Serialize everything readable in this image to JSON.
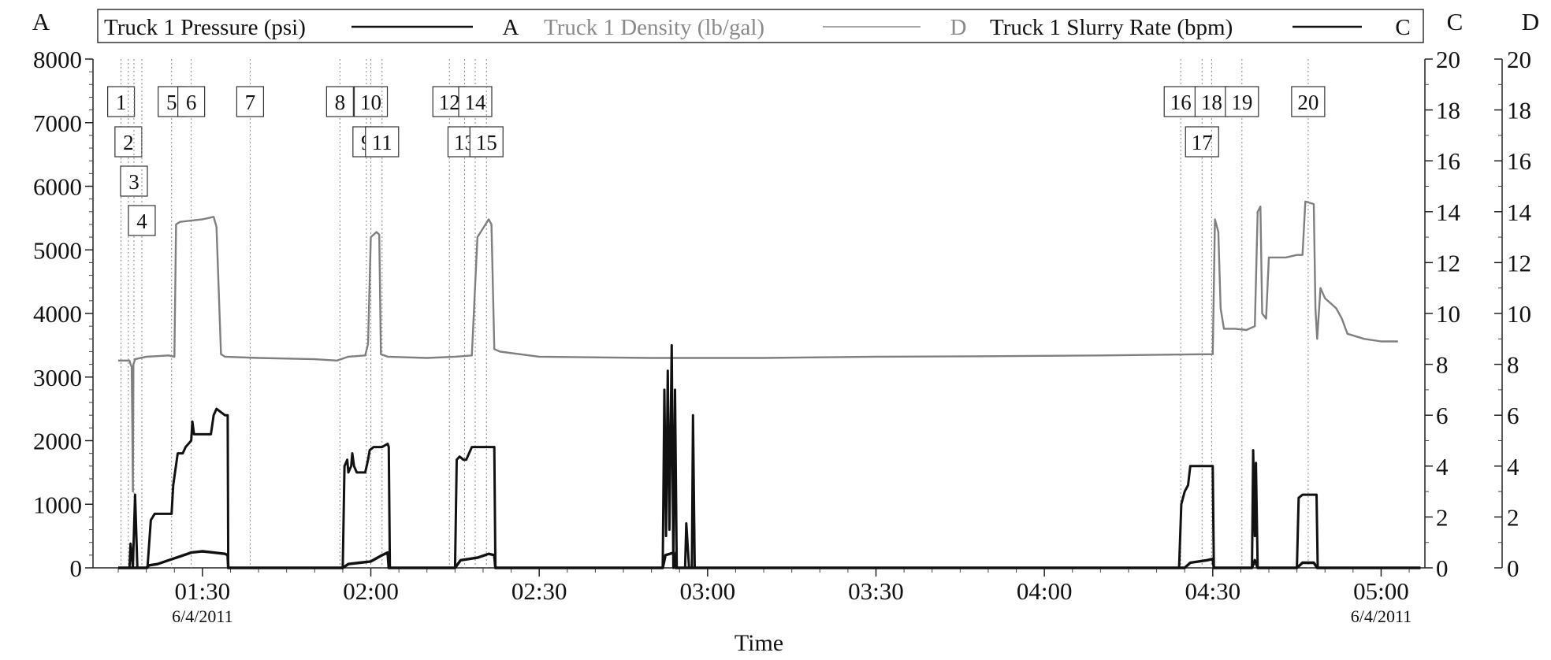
{
  "chart_data": {
    "type": "line",
    "xlabel": "Time",
    "x_ticks": [
      {
        "t": 90,
        "label": "01:30",
        "date": "6/4/2011"
      },
      {
        "t": 120,
        "label": "02:00"
      },
      {
        "t": 150,
        "label": "02:30"
      },
      {
        "t": 180,
        "label": "03:00"
      },
      {
        "t": 210,
        "label": "03:30"
      },
      {
        "t": 240,
        "label": "04:00"
      },
      {
        "t": 270,
        "label": "04:30"
      },
      {
        "t": 300,
        "label": "05:00",
        "date": "6/4/2011"
      }
    ],
    "xlim": [
      70.5,
      307.8
    ],
    "axes": {
      "A": {
        "label": "A",
        "ylim": [
          0,
          8000
        ],
        "ticks": [
          0,
          1000,
          2000,
          3000,
          4000,
          5000,
          6000,
          7000,
          8000
        ]
      },
      "C": {
        "label": "C",
        "ylim": [
          0,
          20
        ],
        "ticks": [
          0,
          2,
          4,
          6,
          8,
          10,
          12,
          14,
          16,
          18,
          20
        ]
      },
      "D": {
        "label": "D",
        "ylim": [
          0,
          20
        ],
        "ticks": [
          0,
          2,
          4,
          6,
          8,
          10,
          12,
          14,
          16,
          18,
          20
        ]
      }
    },
    "legend": [
      {
        "name": "Truck 1 Pressure (psi)",
        "axis": "A",
        "color": "#111111"
      },
      {
        "name": "Truck 1 Density (lb/gal)",
        "axis": "D",
        "color": "#8a8a8a"
      },
      {
        "name": "Truck 1 Slurry Rate (bpm)",
        "axis": "C",
        "color": "#111111"
      }
    ],
    "series": [
      {
        "name": "Truck 1 Pressure (psi)",
        "axis": "A",
        "points": [
          [
            75,
            0
          ],
          [
            77,
            0
          ],
          [
            77.2,
            380
          ],
          [
            77.6,
            0
          ],
          [
            78,
            1150
          ],
          [
            78.4,
            0
          ],
          [
            80,
            0
          ],
          [
            80.2,
            0
          ],
          [
            80.8,
            750
          ],
          [
            81.5,
            850
          ],
          [
            84,
            850
          ],
          [
            84.5,
            850
          ],
          [
            84.8,
            1300
          ],
          [
            85.6,
            1800
          ],
          [
            86.5,
            1800
          ],
          [
            87,
            1900
          ],
          [
            88,
            2000
          ],
          [
            88.2,
            2300
          ],
          [
            88.5,
            2100
          ],
          [
            89,
            2100
          ],
          [
            91.5,
            2100
          ],
          [
            92,
            2400
          ],
          [
            92.5,
            2500
          ],
          [
            94,
            2400
          ],
          [
            94.5,
            2400
          ],
          [
            94.6,
            0
          ],
          [
            115,
            0
          ],
          [
            115.3,
            1600
          ],
          [
            115.8,
            1700
          ],
          [
            116,
            1500
          ],
          [
            116.5,
            1600
          ],
          [
            116.7,
            1800
          ],
          [
            117,
            1600
          ],
          [
            117.5,
            1500
          ],
          [
            119,
            1500
          ],
          [
            119.5,
            1700
          ],
          [
            119.8,
            1850
          ],
          [
            120.5,
            1900
          ],
          [
            122,
            1900
          ],
          [
            123,
            1950
          ],
          [
            123.2,
            1900
          ],
          [
            123.4,
            0
          ],
          [
            135,
            0
          ],
          [
            135.3,
            1700
          ],
          [
            135.8,
            1750
          ],
          [
            136.5,
            1700
          ],
          [
            137,
            1700
          ],
          [
            138,
            1900
          ],
          [
            142,
            1900
          ],
          [
            142.2,
            0
          ],
          [
            172,
            0
          ],
          [
            172.3,
            2800
          ],
          [
            172.6,
            500
          ],
          [
            172.9,
            3100
          ],
          [
            173.2,
            600
          ],
          [
            173.6,
            3500
          ],
          [
            173.9,
            0
          ],
          [
            174.2,
            2800
          ],
          [
            174.5,
            0
          ],
          [
            176,
            0
          ],
          [
            176.2,
            700
          ],
          [
            176.7,
            0
          ],
          [
            177.2,
            0
          ],
          [
            177.4,
            2400
          ],
          [
            177.7,
            0
          ],
          [
            264,
            0
          ],
          [
            264.4,
            1000
          ],
          [
            265,
            1200
          ],
          [
            265.6,
            1300
          ],
          [
            266,
            1600
          ],
          [
            270,
            1600
          ],
          [
            270.2,
            0
          ],
          [
            277,
            0
          ],
          [
            277.2,
            1850
          ],
          [
            277.5,
            500
          ],
          [
            277.7,
            1650
          ],
          [
            278,
            0
          ],
          [
            285,
            0
          ],
          [
            285.3,
            1100
          ],
          [
            286,
            1150
          ],
          [
            288.5,
            1150
          ],
          [
            288.7,
            0
          ],
          [
            307,
            0
          ]
        ]
      },
      {
        "name": "Truck 1 Slurry Rate (bpm)",
        "axis": "C",
        "points": [
          [
            75,
            0
          ],
          [
            80,
            0
          ],
          [
            80.5,
            0.1
          ],
          [
            82,
            0.15
          ],
          [
            84,
            0.3
          ],
          [
            86,
            0.45
          ],
          [
            88,
            0.6
          ],
          [
            90,
            0.65
          ],
          [
            92,
            0.6
          ],
          [
            94,
            0.55
          ],
          [
            94.5,
            0.5
          ],
          [
            94.6,
            0
          ],
          [
            115,
            0
          ],
          [
            116,
            0.15
          ],
          [
            118,
            0.2
          ],
          [
            120,
            0.25
          ],
          [
            122,
            0.5
          ],
          [
            123,
            0.6
          ],
          [
            123.2,
            0
          ],
          [
            135,
            0
          ],
          [
            136,
            0.3
          ],
          [
            139,
            0.4
          ],
          [
            141,
            0.55
          ],
          [
            142,
            0.5
          ],
          [
            142.2,
            0
          ],
          [
            172,
            0
          ],
          [
            172.5,
            0.5
          ],
          [
            174,
            0.6
          ],
          [
            174.3,
            0
          ],
          [
            265,
            0
          ],
          [
            266,
            0.2
          ],
          [
            269,
            0.3
          ],
          [
            270,
            0.35
          ],
          [
            270.2,
            0
          ],
          [
            277,
            0
          ],
          [
            277.5,
            0.3
          ],
          [
            278,
            0
          ],
          [
            285,
            0
          ],
          [
            286,
            0.2
          ],
          [
            288,
            0.2
          ],
          [
            288.6,
            0
          ],
          [
            307,
            0
          ]
        ]
      },
      {
        "name": "Truck 1 Density (lb/gal)",
        "axis": "D",
        "points": [
          [
            75,
            8.15
          ],
          [
            77,
            8.15
          ],
          [
            77.2,
            8.0
          ],
          [
            77.4,
            7.9
          ],
          [
            77.5,
            5.5
          ],
          [
            77.6,
            3.0
          ],
          [
            77.7,
            8.0
          ],
          [
            78,
            8.2
          ],
          [
            80,
            8.3
          ],
          [
            84,
            8.35
          ],
          [
            85,
            8.3
          ],
          [
            85.3,
            13.5
          ],
          [
            86,
            13.6
          ],
          [
            90,
            13.7
          ],
          [
            92,
            13.8
          ],
          [
            92.5,
            13.4
          ],
          [
            93.3,
            8.4
          ],
          [
            94,
            8.3
          ],
          [
            100,
            8.25
          ],
          [
            110,
            8.2
          ],
          [
            114,
            8.15
          ],
          [
            116,
            8.3
          ],
          [
            119,
            8.35
          ],
          [
            119.5,
            8.8
          ],
          [
            120,
            13.0
          ],
          [
            121,
            13.2
          ],
          [
            121.5,
            13.1
          ],
          [
            121.8,
            8.4
          ],
          [
            123,
            8.3
          ],
          [
            130,
            8.25
          ],
          [
            135,
            8.3
          ],
          [
            138,
            8.35
          ],
          [
            139,
            13.0
          ],
          [
            141,
            13.7
          ],
          [
            141.5,
            13.5
          ],
          [
            142,
            8.6
          ],
          [
            143,
            8.5
          ],
          [
            150,
            8.3
          ],
          [
            170,
            8.25
          ],
          [
            190,
            8.25
          ],
          [
            210,
            8.3
          ],
          [
            230,
            8.32
          ],
          [
            250,
            8.35
          ],
          [
            270,
            8.4
          ],
          [
            270.4,
            13.7
          ],
          [
            271,
            13.2
          ],
          [
            271.4,
            10.2
          ],
          [
            272,
            9.4
          ],
          [
            274,
            9.4
          ],
          [
            276,
            9.35
          ],
          [
            277.5,
            9.5
          ],
          [
            278,
            14.0
          ],
          [
            278.5,
            14.2
          ],
          [
            278.8,
            10.0
          ],
          [
            279.5,
            9.8
          ],
          [
            280,
            12.2
          ],
          [
            283,
            12.2
          ],
          [
            285,
            12.3
          ],
          [
            286,
            12.3
          ],
          [
            286.5,
            14.4
          ],
          [
            288,
            14.3
          ],
          [
            288.3,
            10.2
          ],
          [
            288.6,
            9.0
          ],
          [
            289.2,
            11.0
          ],
          [
            290,
            10.6
          ],
          [
            292,
            10.2
          ],
          [
            293,
            9.8
          ],
          [
            294,
            9.2
          ],
          [
            297,
            9.0
          ],
          [
            300,
            8.9
          ],
          [
            303,
            8.9
          ]
        ]
      }
    ],
    "markers": [
      {
        "label": "1",
        "t": 75.5,
        "row": 0
      },
      {
        "label": "2",
        "t": 76.8,
        "row": 1
      },
      {
        "label": "3",
        "t": 77.8,
        "row": 2
      },
      {
        "label": "4",
        "t": 79.2,
        "row": 3
      },
      {
        "label": "5",
        "t": 84.5,
        "row": 0
      },
      {
        "label": "6",
        "t": 88.0,
        "row": 0
      },
      {
        "label": "7",
        "t": 98.5,
        "row": 0
      },
      {
        "label": "8",
        "t": 114.5,
        "row": 0
      },
      {
        "label": "9",
        "t": 119.2,
        "row": 1
      },
      {
        "label": "10",
        "t": 120.0,
        "row": 0
      },
      {
        "label": "11",
        "t": 122.0,
        "row": 1
      },
      {
        "label": "12",
        "t": 134.0,
        "row": 0
      },
      {
        "label": "13",
        "t": 136.7,
        "row": 1
      },
      {
        "label": "14",
        "t": 138.6,
        "row": 0
      },
      {
        "label": "15",
        "t": 140.6,
        "row": 1
      },
      {
        "label": "16",
        "t": 264.3,
        "row": 0
      },
      {
        "label": "17",
        "t": 268.1,
        "row": 1
      },
      {
        "label": "18",
        "t": 269.8,
        "row": 0
      },
      {
        "label": "19",
        "t": 275.2,
        "row": 0
      },
      {
        "label": "20",
        "t": 287.0,
        "row": 0
      }
    ],
    "grid": false,
    "legend_position": "top"
  }
}
